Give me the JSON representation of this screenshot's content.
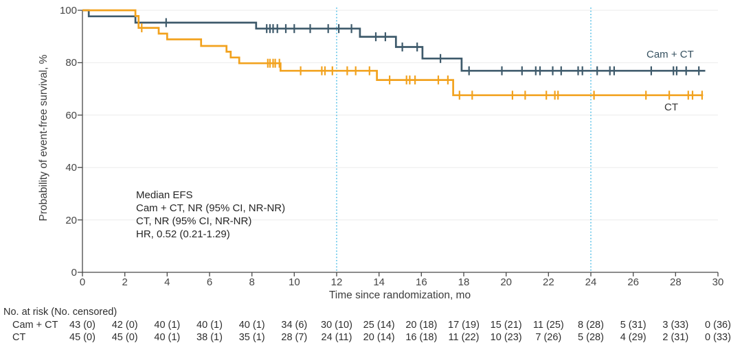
{
  "chart_data": {
    "type": "line",
    "subtype": "kaplan-meier-step",
    "title": "",
    "xlabel": "Time since randomization, mo",
    "ylabel": "Probability of event-free survival, %",
    "xlim": [
      0,
      30
    ],
    "ylim": [
      0,
      100
    ],
    "xticks": [
      0,
      2,
      4,
      6,
      8,
      10,
      12,
      14,
      16,
      18,
      20,
      22,
      24,
      26,
      28,
      30
    ],
    "yticks": [
      0,
      20,
      40,
      60,
      80,
      100
    ],
    "grid": "horizontal",
    "grid_color": "#EBEBEB",
    "axis_color": "#474747",
    "reference_lines_x": [
      12,
      24
    ],
    "reference_line_color": "#5BC2E8",
    "annotation": [
      "Median EFS",
      "Cam + CT, NR (95% CI, NR-NR)",
      "CT, NR (95% CI, NR-NR)",
      "HR, 0.52 (0.21-1.29)"
    ],
    "series": [
      {
        "name": "Cam + CT",
        "color": "#3E5A6B",
        "steps": [
          [
            0,
            100
          ],
          [
            0.3,
            97.7
          ],
          [
            2.5,
            95.3
          ],
          [
            8.2,
            93.0
          ],
          [
            13.1,
            89.9
          ],
          [
            14.8,
            86.0
          ],
          [
            16.05,
            81.6
          ],
          [
            17.9,
            76.9
          ],
          [
            29.4,
            76.9
          ]
        ],
        "censor_marks": [
          [
            3.95,
            95.3
          ],
          [
            8.7,
            93.0
          ],
          [
            8.85,
            93.0
          ],
          [
            9.0,
            93.0
          ],
          [
            9.2,
            93.0
          ],
          [
            9.6,
            93.0
          ],
          [
            10.0,
            93.0
          ],
          [
            10.75,
            93.0
          ],
          [
            11.6,
            93.0
          ],
          [
            12.1,
            93.0
          ],
          [
            12.7,
            93.0
          ],
          [
            13.85,
            89.9
          ],
          [
            14.3,
            89.9
          ],
          [
            15.1,
            86.0
          ],
          [
            15.8,
            86.0
          ],
          [
            16.9,
            81.6
          ],
          [
            18.25,
            76.9
          ],
          [
            19.8,
            76.9
          ],
          [
            20.75,
            76.9
          ],
          [
            21.4,
            76.9
          ],
          [
            21.6,
            76.9
          ],
          [
            22.2,
            76.9
          ],
          [
            22.6,
            76.9
          ],
          [
            23.4,
            76.9
          ],
          [
            23.6,
            76.9
          ],
          [
            24.3,
            76.9
          ],
          [
            24.9,
            76.9
          ],
          [
            25.1,
            76.9
          ],
          [
            26.85,
            76.9
          ],
          [
            27.9,
            76.9
          ],
          [
            28.05,
            76.9
          ],
          [
            28.5,
            76.9
          ],
          [
            29.1,
            76.9
          ]
        ]
      },
      {
        "name": "CT",
        "color": "#F2A21E",
        "steps": [
          [
            0,
            100
          ],
          [
            2.5,
            97.8
          ],
          [
            2.65,
            93.3
          ],
          [
            3.6,
            91.1
          ],
          [
            4.0,
            88.9
          ],
          [
            5.6,
            86.4
          ],
          [
            6.8,
            84.2
          ],
          [
            7.0,
            82.0
          ],
          [
            7.4,
            79.8
          ],
          [
            9.35,
            76.9
          ],
          [
            13.9,
            73.4
          ],
          [
            17.5,
            67.6
          ],
          [
            29.3,
            67.6
          ]
        ],
        "censor_marks": [
          [
            2.8,
            93.3
          ],
          [
            8.75,
            79.8
          ],
          [
            8.85,
            79.8
          ],
          [
            9.0,
            79.8
          ],
          [
            9.1,
            79.8
          ],
          [
            9.3,
            79.8
          ],
          [
            10.3,
            76.9
          ],
          [
            11.3,
            76.9
          ],
          [
            11.45,
            76.9
          ],
          [
            11.8,
            76.9
          ],
          [
            12.5,
            76.9
          ],
          [
            12.9,
            76.9
          ],
          [
            13.55,
            76.9
          ],
          [
            14.5,
            73.4
          ],
          [
            15.3,
            73.4
          ],
          [
            15.45,
            73.4
          ],
          [
            15.7,
            73.4
          ],
          [
            16.8,
            73.4
          ],
          [
            17.25,
            73.4
          ],
          [
            17.8,
            67.6
          ],
          [
            18.4,
            67.6
          ],
          [
            20.3,
            67.6
          ],
          [
            20.9,
            67.6
          ],
          [
            21.9,
            67.6
          ],
          [
            22.3,
            67.6
          ],
          [
            22.45,
            67.6
          ],
          [
            24.15,
            67.6
          ],
          [
            26.6,
            67.6
          ],
          [
            27.7,
            67.6
          ],
          [
            28.6,
            67.6
          ],
          [
            28.8,
            67.6
          ],
          [
            29.25,
            67.6
          ]
        ]
      }
    ]
  },
  "risk_table": {
    "title": "No. at risk (No. censored)",
    "time_points": [
      0,
      2,
      4,
      6,
      8,
      10,
      12,
      14,
      16,
      18,
      20,
      22,
      24,
      26,
      28,
      30
    ],
    "rows": [
      {
        "label": "Cam + CT",
        "values": [
          "43 (0)",
          "42 (0)",
          "40 (1)",
          "40 (1)",
          "40 (1)",
          "34 (6)",
          "30 (10)",
          "25 (14)",
          "20 (18)",
          "17 (19)",
          "15 (21)",
          "11 (25)",
          "8 (28)",
          "5 (31)",
          "3 (33)",
          "0 (36)"
        ]
      },
      {
        "label": "CT",
        "values": [
          "45 (0)",
          "45 (0)",
          "40 (1)",
          "38 (1)",
          "35 (1)",
          "28 (7)",
          "24 (11)",
          "20 (14)",
          "16 (18)",
          "11 (22)",
          "10 (23)",
          "7 (26)",
          "5 (28)",
          "4 (29)",
          "2 (31)",
          "0 (33)"
        ]
      }
    ]
  }
}
